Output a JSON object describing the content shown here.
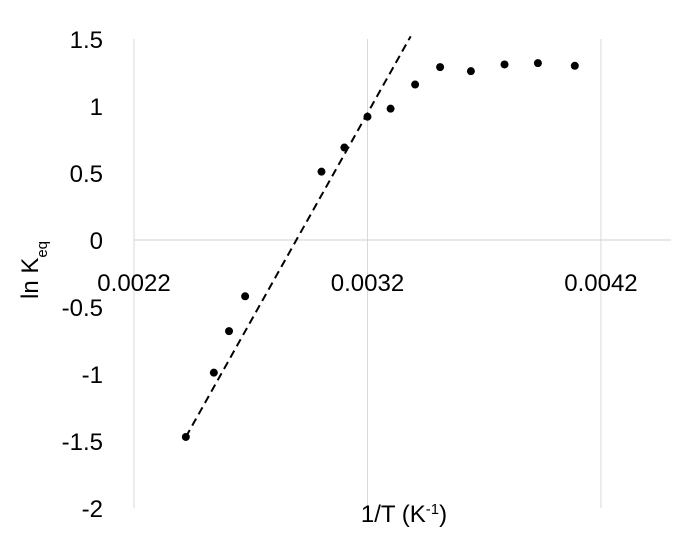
{
  "chart_data": {
    "type": "scatter",
    "xlabel": "1/T (K",
    "xlabel_sup": "-1",
    "xlabel_end": ")",
    "ylabel": "ln K",
    "ylabel_sub": "eq",
    "xlim": [
      0.0022,
      0.0045
    ],
    "ylim": [
      -2,
      1.5
    ],
    "xticks": [
      {
        "value": 0.0022,
        "label": "0.0022"
      },
      {
        "value": 0.0032,
        "label": "0.0032"
      },
      {
        "value": 0.0042,
        "label": "0.0042"
      }
    ],
    "yticks": [
      {
        "value": 1.5,
        "label": "1.5"
      },
      {
        "value": 1,
        "label": "1"
      },
      {
        "value": 0.5,
        "label": "0.5"
      },
      {
        "value": 0,
        "label": "0"
      },
      {
        "value": -0.5,
        "label": "-0.5"
      },
      {
        "value": -1,
        "label": "-1"
      },
      {
        "value": -1.5,
        "label": "-1.5"
      },
      {
        "value": -2,
        "label": "-2"
      }
    ],
    "grid": "vertical",
    "series": [
      {
        "points": [
          [
            0.002422,
            -1.47
          ],
          [
            0.002542,
            -0.99
          ],
          [
            0.002607,
            -0.68
          ],
          [
            0.002676,
            -0.42
          ],
          [
            0.003003,
            0.51
          ],
          [
            0.003101,
            0.69
          ],
          [
            0.0032,
            0.92
          ],
          [
            0.003299,
            0.98
          ],
          [
            0.003404,
            1.16
          ],
          [
            0.003511,
            1.29
          ],
          [
            0.003643,
            1.26
          ],
          [
            0.003787,
            1.31
          ],
          [
            0.00393,
            1.32
          ],
          [
            0.004088,
            1.3
          ]
        ],
        "color": "#000000"
      }
    ],
    "trendline": {
      "style": "dashed",
      "color": "#000000",
      "x": [
        0.002422,
        0.003385
      ],
      "y": [
        -1.47,
        1.52
      ]
    }
  }
}
